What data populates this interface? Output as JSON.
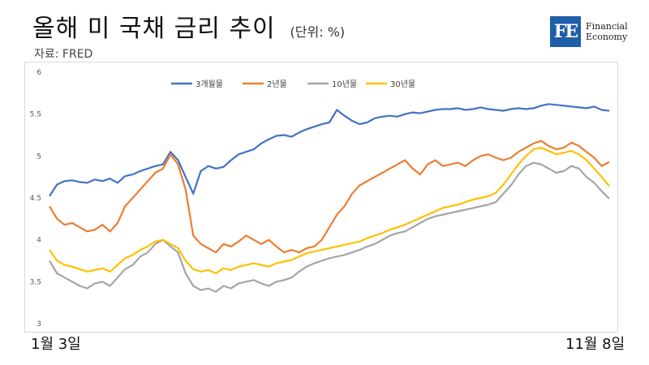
{
  "header": {
    "title": "올해 미 국채 금리 추이",
    "unit": "(단위: %)",
    "source": "자료: FRED"
  },
  "logo": {
    "mark": "FE",
    "line1": "Financial",
    "line2": "Economy"
  },
  "x_axis": {
    "start_label": "1월 3일",
    "end_label": "11월 8일"
  },
  "colors": {
    "3m": "#4472c4",
    "2y": "#ed7d31",
    "10y": "#a5a5a5",
    "30y": "#ffc000"
  },
  "chart_data": {
    "type": "line",
    "x_start": "1월 3일",
    "x_end": "11월 8일",
    "ylim": [
      3,
      6
    ],
    "yticks": [
      "3",
      "3.5",
      "4",
      "4.5",
      "5",
      "5.5",
      "6"
    ],
    "legend_position": "top",
    "grid": false,
    "series": [
      {
        "name": "3개월물",
        "key": "3m",
        "values": [
          4.52,
          4.66,
          4.7,
          4.71,
          4.69,
          4.68,
          4.72,
          4.7,
          4.73,
          4.68,
          4.76,
          4.78,
          4.82,
          4.85,
          4.88,
          4.9,
          5.05,
          4.95,
          4.75,
          4.55,
          4.82,
          4.88,
          4.85,
          4.87,
          4.95,
          5.02,
          5.05,
          5.08,
          5.15,
          5.2,
          5.24,
          5.25,
          5.23,
          5.28,
          5.32,
          5.35,
          5.38,
          5.4,
          5.55,
          5.48,
          5.42,
          5.38,
          5.4,
          5.45,
          5.47,
          5.48,
          5.47,
          5.5,
          5.52,
          5.51,
          5.53,
          5.55,
          5.56,
          5.56,
          5.57,
          5.55,
          5.56,
          5.58,
          5.56,
          5.55,
          5.54,
          5.56,
          5.57,
          5.56,
          5.57,
          5.6,
          5.62,
          5.61,
          5.6,
          5.59,
          5.58,
          5.57,
          5.59,
          5.55,
          5.54
        ]
      },
      {
        "name": "2년물",
        "key": "2y",
        "values": [
          4.4,
          4.25,
          4.18,
          4.2,
          4.15,
          4.1,
          4.12,
          4.18,
          4.1,
          4.2,
          4.4,
          4.5,
          4.6,
          4.7,
          4.8,
          4.85,
          5.02,
          4.9,
          4.6,
          4.05,
          3.95,
          3.9,
          3.85,
          3.95,
          3.92,
          3.98,
          4.05,
          4.0,
          3.95,
          4.0,
          3.92,
          3.85,
          3.88,
          3.85,
          3.9,
          3.92,
          4.0,
          4.15,
          4.3,
          4.4,
          4.55,
          4.65,
          4.7,
          4.75,
          4.8,
          4.85,
          4.9,
          4.95,
          4.85,
          4.78,
          4.9,
          4.95,
          4.88,
          4.9,
          4.92,
          4.88,
          4.95,
          5.0,
          5.02,
          4.98,
          4.95,
          4.98,
          5.05,
          5.1,
          5.15,
          5.18,
          5.12,
          5.08,
          5.1,
          5.16,
          5.12,
          5.05,
          4.98,
          4.88,
          4.93
        ]
      },
      {
        "name": "10년물",
        "key": "10y",
        "values": [
          3.75,
          3.6,
          3.55,
          3.5,
          3.45,
          3.42,
          3.48,
          3.5,
          3.45,
          3.55,
          3.65,
          3.7,
          3.8,
          3.85,
          3.95,
          4.0,
          3.92,
          3.85,
          3.6,
          3.45,
          3.4,
          3.42,
          3.38,
          3.45,
          3.42,
          3.48,
          3.5,
          3.52,
          3.48,
          3.45,
          3.5,
          3.52,
          3.55,
          3.62,
          3.68,
          3.72,
          3.75,
          3.78,
          3.8,
          3.82,
          3.85,
          3.88,
          3.92,
          3.95,
          4.0,
          4.05,
          4.08,
          4.1,
          4.15,
          4.2,
          4.25,
          4.28,
          4.3,
          4.32,
          4.34,
          4.36,
          4.38,
          4.4,
          4.42,
          4.45,
          4.55,
          4.65,
          4.78,
          4.88,
          4.92,
          4.9,
          4.85,
          4.8,
          4.82,
          4.88,
          4.85,
          4.75,
          4.68,
          4.58,
          4.49
        ]
      },
      {
        "name": "30년물",
        "key": "30y",
        "values": [
          3.88,
          3.75,
          3.7,
          3.68,
          3.65,
          3.62,
          3.64,
          3.66,
          3.62,
          3.7,
          3.78,
          3.82,
          3.88,
          3.92,
          3.98,
          4.0,
          3.95,
          3.9,
          3.75,
          3.65,
          3.62,
          3.64,
          3.6,
          3.66,
          3.64,
          3.68,
          3.7,
          3.72,
          3.7,
          3.68,
          3.72,
          3.74,
          3.76,
          3.8,
          3.84,
          3.86,
          3.88,
          3.9,
          3.92,
          3.94,
          3.96,
          3.98,
          4.02,
          4.05,
          4.08,
          4.12,
          4.15,
          4.18,
          4.22,
          4.26,
          4.3,
          4.34,
          4.38,
          4.4,
          4.42,
          4.45,
          4.48,
          4.5,
          4.52,
          4.56,
          4.66,
          4.78,
          4.9,
          5.0,
          5.08,
          5.1,
          5.06,
          5.02,
          5.04,
          5.06,
          5.02,
          4.95,
          4.85,
          4.75,
          4.64
        ]
      }
    ]
  }
}
